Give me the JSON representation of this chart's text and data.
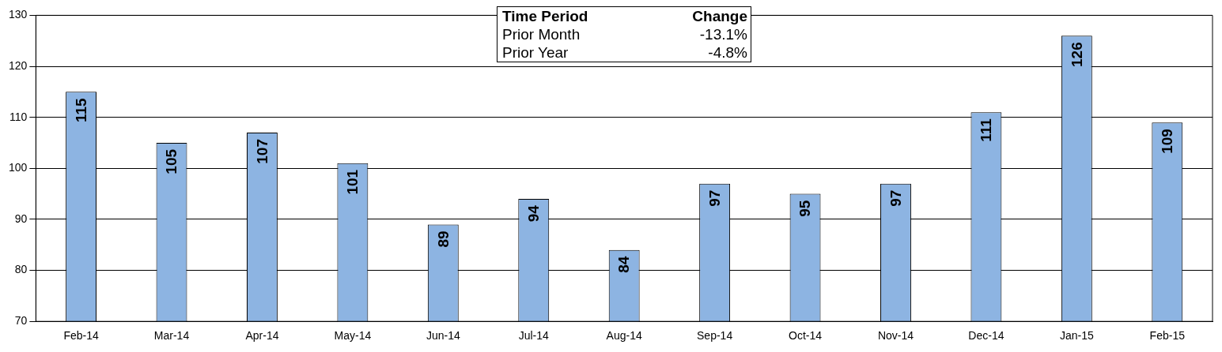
{
  "chart_data": {
    "type": "bar",
    "categories": [
      "Feb-14",
      "Mar-14",
      "Apr-14",
      "May-14",
      "Jun-14",
      "Jul-14",
      "Aug-14",
      "Sep-14",
      "Oct-14",
      "Nov-14",
      "Dec-14",
      "Jan-15",
      "Feb-15"
    ],
    "values": [
      115,
      105,
      107,
      101,
      89,
      94,
      84,
      97,
      95,
      97,
      111,
      126,
      109
    ],
    "color": "#8db4e2",
    "ylim": [
      70,
      130
    ],
    "yticks": [
      70,
      80,
      90,
      100,
      110,
      120,
      130
    ],
    "grid": "y",
    "legend": false,
    "data_labels": true,
    "annotations": [
      "Time Period",
      "Change",
      "Prior Month",
      "-13.1%",
      "Prior Year",
      "-4.8%"
    ]
  }
}
